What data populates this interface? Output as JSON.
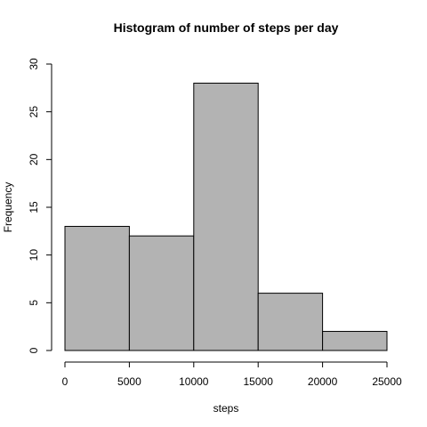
{
  "chart_data": {
    "type": "bar",
    "title": "Histogram of number of steps per day",
    "xlabel": "steps",
    "ylabel": "Frequency",
    "bins": [
      {
        "start": 0,
        "end": 5000,
        "count": 13
      },
      {
        "start": 5000,
        "end": 10000,
        "count": 12
      },
      {
        "start": 10000,
        "end": 15000,
        "count": 28
      },
      {
        "start": 15000,
        "end": 20000,
        "count": 6
      },
      {
        "start": 20000,
        "end": 25000,
        "count": 2
      }
    ],
    "xlim": [
      0,
      25000
    ],
    "ylim": [
      0,
      30
    ],
    "xticks": [
      0,
      5000,
      10000,
      15000,
      20000,
      25000
    ],
    "yticks": [
      0,
      5,
      10,
      15,
      20,
      25,
      30
    ],
    "bar_color": "#b3b3b3",
    "edge_color": "#000000",
    "grid": false
  }
}
